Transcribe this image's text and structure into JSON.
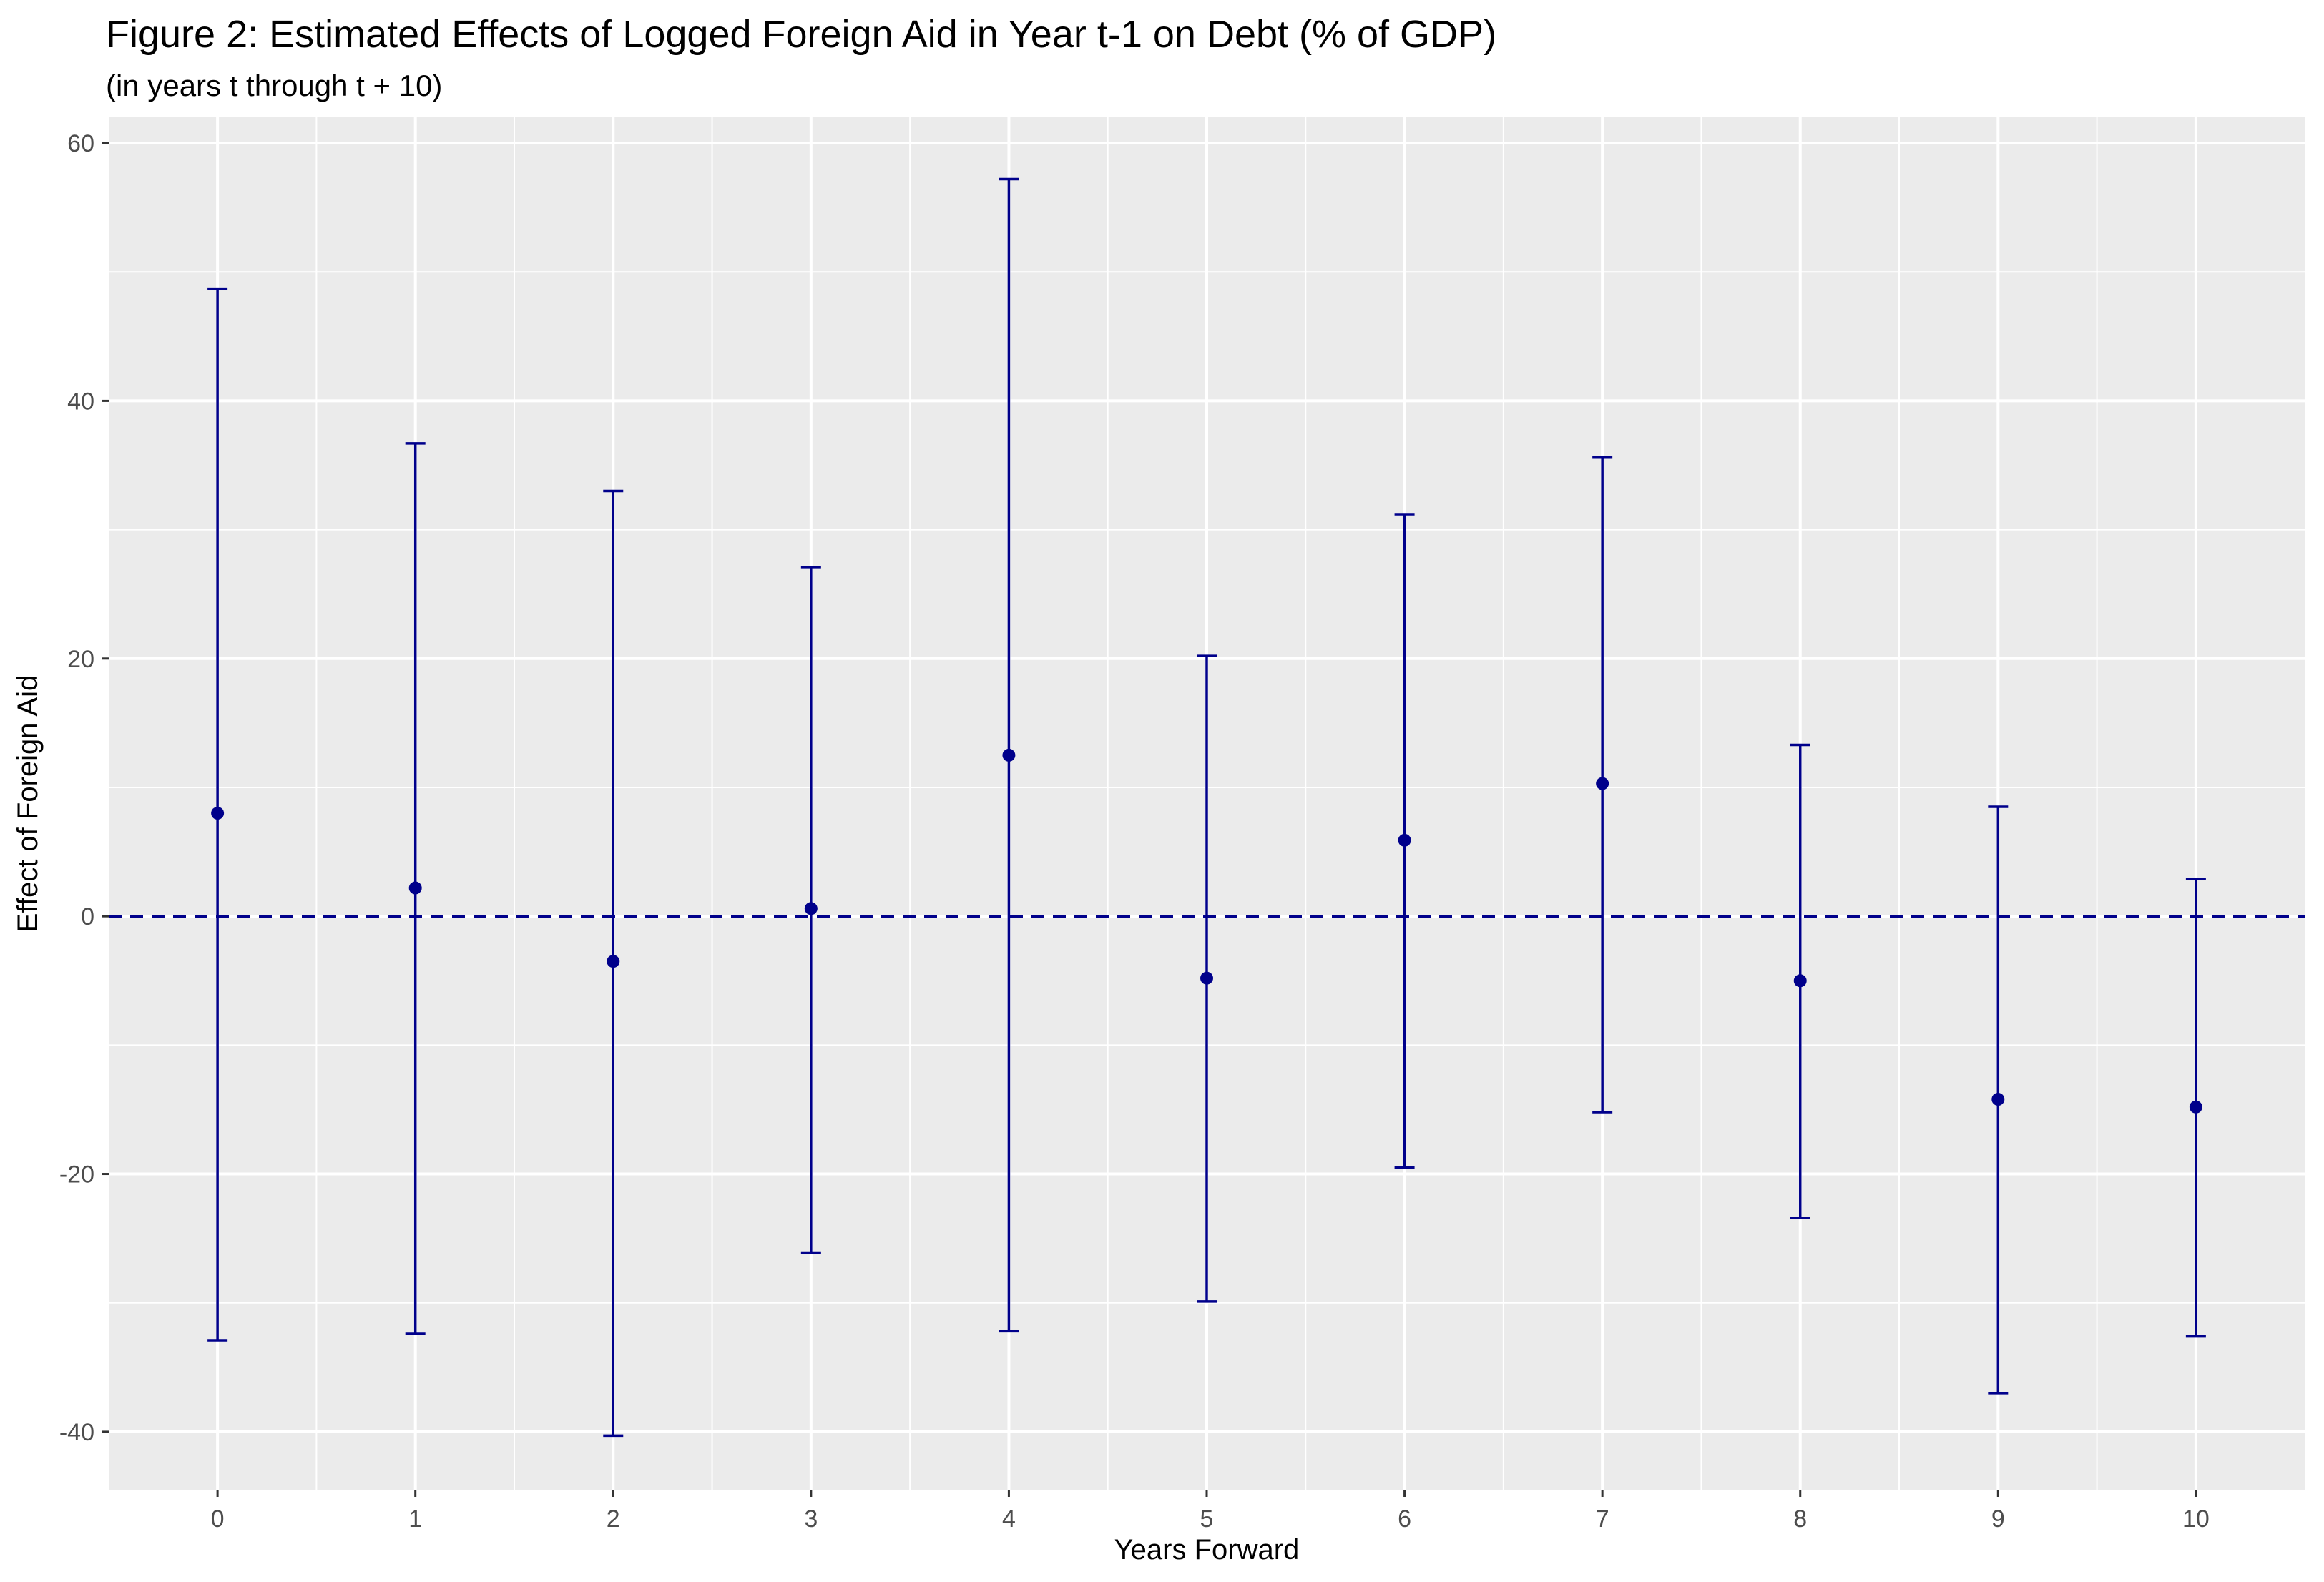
{
  "chart_data": {
    "type": "scatter",
    "title": "Figure 2: Estimated Effects of Logged Foreign Aid in Year t-1 on Debt (% of GDP)",
    "subtitle": "(in years t through t + 10)",
    "xlabel": "Years Forward",
    "ylabel": "Effect of Foreign Aid",
    "x": [
      0,
      1,
      2,
      3,
      4,
      5,
      6,
      7,
      8,
      9,
      10
    ],
    "estimate": [
      8.0,
      2.2,
      -3.5,
      0.6,
      12.5,
      -4.8,
      5.9,
      10.3,
      -5.0,
      -14.2,
      -14.8
    ],
    "ci_upper": [
      48.7,
      36.7,
      33.0,
      27.1,
      57.2,
      20.2,
      31.2,
      35.6,
      13.3,
      8.5,
      2.9
    ],
    "ci_lower": [
      -32.9,
      -32.4,
      -40.3,
      -26.1,
      -32.2,
      -29.9,
      -19.5,
      -15.2,
      -23.4,
      -37.0,
      -32.6
    ],
    "xlim": [
      -0.55,
      10.55
    ],
    "ylim": [
      -44.5,
      62
    ],
    "yticks": [
      -40,
      -20,
      0,
      20,
      40,
      60
    ],
    "xticks": [
      0,
      1,
      2,
      3,
      4,
      5,
      6,
      7,
      8,
      9,
      10
    ],
    "reference_line": 0,
    "grid": true,
    "colors": {
      "series": "#00008B",
      "panel": "#EBEBEB",
      "grid": "#FFFFFF",
      "axis_text": "#4D4D4D"
    }
  }
}
